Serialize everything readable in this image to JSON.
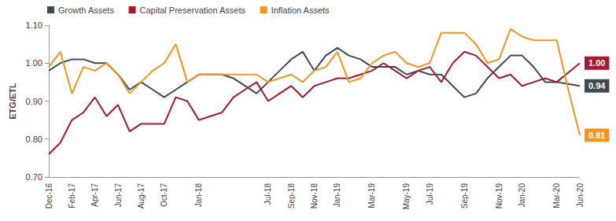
{
  "chart_data": {
    "type": "line",
    "y_label": "ETG/ETL",
    "categories": [
      "Dec-16",
      null,
      "Feb-17",
      null,
      "Apr-17",
      null,
      "Jun-17",
      null,
      "Aug-17",
      null,
      "Oct-17",
      null,
      null,
      "Jan-18",
      null,
      null,
      null,
      null,
      null,
      "Jul-18",
      null,
      "Sep-18",
      null,
      "Nov-18",
      null,
      "Jan-19",
      null,
      null,
      "Mar-19",
      null,
      null,
      "May-19",
      null,
      "Jul-19",
      null,
      null,
      "Sep-19",
      null,
      null,
      "Nov-19",
      null,
      "Jan-20",
      null,
      null,
      "Mar-20",
      null,
      "Jun-20"
    ],
    "series": [
      {
        "name": "Growth Assets",
        "color": "#3d4b55",
        "values": [
          0.98,
          1.0,
          1.01,
          1.01,
          1.0,
          1.0,
          0.97,
          0.93,
          0.95,
          0.93,
          0.91,
          0.93,
          0.95,
          0.97,
          0.97,
          0.97,
          0.96,
          0.94,
          0.92,
          0.95,
          0.98,
          1.01,
          1.03,
          0.98,
          1.02,
          1.04,
          1.02,
          1.01,
          0.99,
          0.99,
          0.99,
          0.97,
          0.98,
          0.97,
          0.97,
          0.94,
          0.91,
          0.92,
          0.96,
          0.99,
          1.02,
          1.02,
          0.99,
          0.95,
          0.95,
          0.945,
          0.94
        ],
        "value_labels": [
          null,
          null,
          null,
          null,
          null,
          null,
          null,
          null,
          null,
          null,
          null,
          null,
          null,
          null,
          null,
          null,
          null,
          null,
          null,
          null,
          null,
          null,
          null,
          null,
          null,
          null,
          null,
          null,
          null,
          null,
          null,
          null,
          null,
          null,
          null,
          null,
          null,
          null,
          null,
          null,
          null,
          null,
          null,
          null,
          null,
          null,
          "0.94"
        ]
      },
      {
        "name": "Capital Preservation Assets",
        "color": "#a6192e",
        "values": [
          0.76,
          0.79,
          0.85,
          0.87,
          0.91,
          0.86,
          0.89,
          0.82,
          0.84,
          0.84,
          0.84,
          0.91,
          0.9,
          0.85,
          0.86,
          0.87,
          0.91,
          0.93,
          0.95,
          0.9,
          0.92,
          0.94,
          0.91,
          0.94,
          0.95,
          0.96,
          0.96,
          0.97,
          0.98,
          1.0,
          0.98,
          0.96,
          0.98,
          0.99,
          0.95,
          1.0,
          1.03,
          1.02,
          0.99,
          0.96,
          0.97,
          0.94,
          0.95,
          0.96,
          0.95,
          0.975,
          1.0
        ],
        "value_labels": [
          null,
          null,
          null,
          null,
          null,
          null,
          null,
          null,
          null,
          null,
          null,
          null,
          null,
          null,
          null,
          null,
          null,
          null,
          null,
          null,
          null,
          null,
          null,
          null,
          null,
          null,
          null,
          null,
          null,
          null,
          null,
          null,
          null,
          null,
          null,
          null,
          null,
          null,
          null,
          null,
          null,
          null,
          null,
          null,
          null,
          null,
          "1.00"
        ]
      },
      {
        "name": "Inflation Assets",
        "color": "#f7941d",
        "values": [
          0.99,
          1.03,
          0.92,
          0.99,
          0.98,
          1.0,
          0.97,
          0.92,
          0.95,
          0.98,
          1.0,
          1.05,
          0.95,
          0.97,
          0.97,
          0.97,
          0.97,
          0.97,
          0.97,
          0.95,
          0.96,
          0.97,
          0.95,
          0.98,
          0.99,
          1.03,
          0.95,
          0.96,
          1.0,
          1.02,
          1.03,
          1.0,
          0.99,
          1.0,
          1.08,
          1.08,
          1.08,
          1.05,
          1.0,
          1.01,
          1.09,
          1.07,
          1.06,
          1.06,
          1.06,
          0.93,
          0.81
        ],
        "value_labels": [
          null,
          null,
          null,
          null,
          null,
          null,
          null,
          null,
          null,
          null,
          null,
          null,
          null,
          null,
          null,
          null,
          null,
          null,
          null,
          null,
          null,
          null,
          null,
          null,
          null,
          null,
          null,
          null,
          null,
          null,
          null,
          null,
          null,
          null,
          null,
          null,
          null,
          null,
          null,
          null,
          null,
          null,
          null,
          null,
          null,
          null,
          "0.81"
        ]
      }
    ],
    "ylim": [
      0.7,
      1.1
    ],
    "yticks": [
      {
        "value": 0.7,
        "label": "0.70"
      },
      {
        "value": 0.8,
        "label": "0.80"
      },
      {
        "value": 0.9,
        "label": "0.90"
      },
      {
        "value": 1.0,
        "label": "1.00"
      },
      {
        "value": 1.1,
        "label": "1.10"
      }
    ],
    "grid": false,
    "legend": "top-left"
  }
}
